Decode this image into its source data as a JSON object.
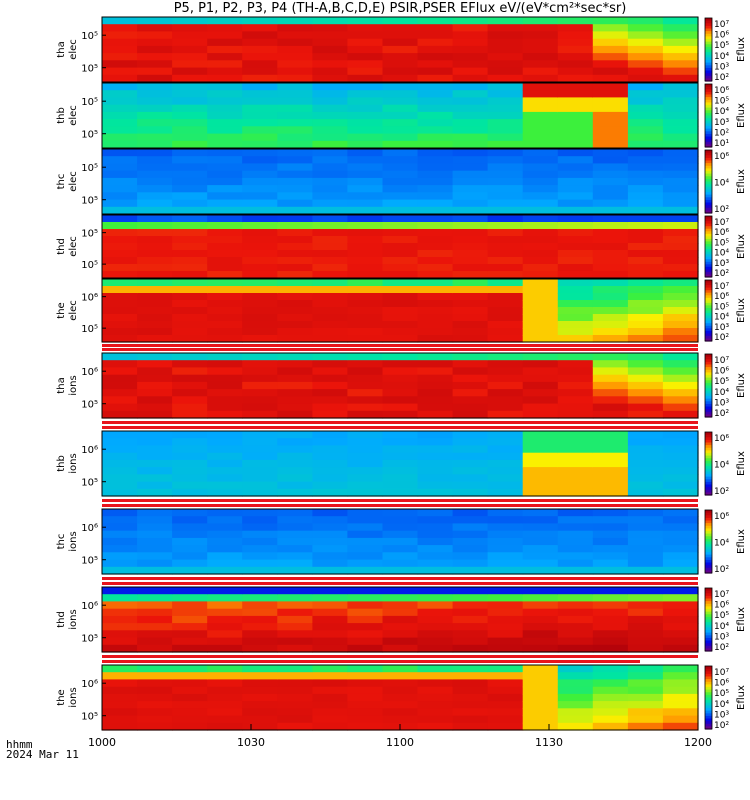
{
  "chart_data": {
    "type": "heatmap",
    "title": "P5, P1, P2, P3, P4 (TH-A,B,C,D,E) PSIR,PSER EFlux eV/(eV*cm²*sec*sr)",
    "x": {
      "ticks": [
        "1000",
        "1030",
        "1100",
        "1130",
        "1200"
      ],
      "label_units": "hhmm"
    },
    "date": "2024 Mar 11",
    "colorbar_label": "Eflux",
    "panels": [
      {
        "probe": "tha",
        "species": "elec",
        "ylabel": [
          "tha",
          "elec"
        ],
        "yticks": [
          "10⁵",
          "10⁵"
        ],
        "cbar_ticks": [
          "10⁷",
          "10⁶",
          "10⁵",
          "10⁴",
          "10³",
          "10²"
        ],
        "regime": "dense_then_flare"
      },
      {
        "probe": "thb",
        "species": "elec",
        "ylabel": [
          "thb",
          "elec"
        ],
        "yticks": [
          "10⁵",
          "10⁵"
        ],
        "cbar_ticks": [
          "10⁶",
          "10⁵",
          "10⁴",
          "10³",
          "10²",
          "10¹"
        ],
        "regime": "green_with_burst"
      },
      {
        "probe": "thc",
        "species": "elec",
        "ylabel": [
          "thc",
          "elec"
        ],
        "yticks": [
          "10⁵",
          "10⁵"
        ],
        "cbar_ticks": [
          "10⁶",
          "10⁴",
          "10²"
        ],
        "regime": "blue"
      },
      {
        "probe": "thd",
        "species": "elec",
        "ylabel": [
          "thd",
          "elec"
        ],
        "yticks": [
          "10⁵",
          "10⁵"
        ],
        "cbar_ticks": [
          "10⁷",
          "10⁶",
          "10⁵",
          "10⁴",
          "10³",
          "10²"
        ],
        "regime": "dense"
      },
      {
        "probe": "the",
        "species": "elec",
        "ylabel": [
          "the",
          "elec"
        ],
        "yticks": [
          "10⁶",
          "10⁵"
        ],
        "cbar_ticks": [
          "10⁷",
          "10⁶",
          "10⁵",
          "10⁴",
          "10³",
          "10²"
        ],
        "regime": "dense_then_gradient"
      },
      {
        "probe": "tha",
        "species": "ions",
        "ylabel": [
          "tha",
          "ions"
        ],
        "yticks": [
          "10⁶",
          "10⁵"
        ],
        "cbar_ticks": [
          "10⁷",
          "10⁶",
          "10⁵",
          "10⁴",
          "10³",
          "10²"
        ],
        "regime": "dense_then_flare"
      },
      {
        "probe": "thb",
        "species": "ions",
        "ylabel": [
          "thb",
          "ions"
        ],
        "yticks": [
          "10⁶",
          "10⁵"
        ],
        "cbar_ticks": [
          "10⁶",
          "10⁴",
          "10²"
        ],
        "regime": "cyan_with_burst"
      },
      {
        "probe": "thc",
        "species": "ions",
        "ylabel": [
          "thc",
          "ions"
        ],
        "yticks": [
          "10⁶",
          "10⁵"
        ],
        "cbar_ticks": [
          "10⁶",
          "10⁴",
          "10²"
        ],
        "regime": "blue"
      },
      {
        "probe": "thd",
        "species": "ions",
        "ylabel": [
          "thd",
          "ions"
        ],
        "yticks": [
          "10⁶",
          "10⁵"
        ],
        "cbar_ticks": [
          "10⁷",
          "10⁶",
          "10⁵",
          "10⁴",
          "10³",
          "10²"
        ],
        "regime": "orange_red"
      },
      {
        "probe": "the",
        "species": "ions",
        "ylabel": [
          "the",
          "ions"
        ],
        "yticks": [
          "10⁶",
          "10⁵"
        ],
        "cbar_ticks": [
          "10⁷",
          "10⁶",
          "10⁵",
          "10⁴",
          "10³",
          "10²"
        ],
        "regime": "dense_then_gradient"
      }
    ],
    "bars_between_panels": [
      4,
      5,
      6,
      7,
      8
    ]
  }
}
